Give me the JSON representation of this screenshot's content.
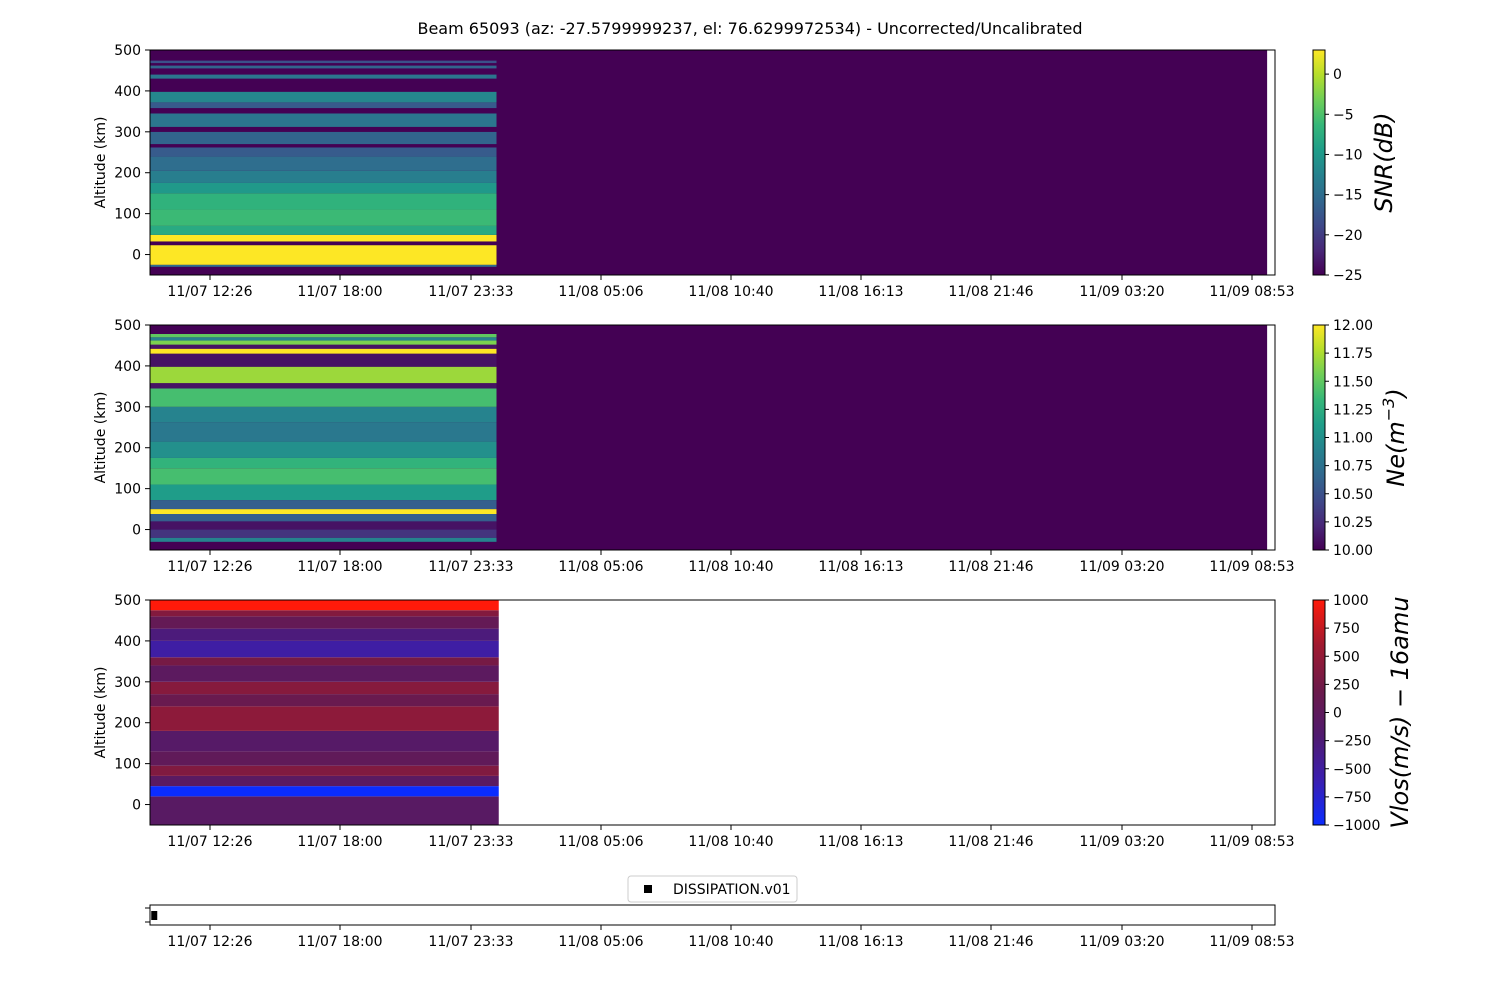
{
  "figure": {
    "title": "Beam 65093 (az: -27.5799999237, el: 76.6299972534) - Uncorrected/Uncalibrated",
    "time_ticks": [
      "11/07 12:26",
      "11/07 18:00",
      "11/07 23:33",
      "11/08 05:06",
      "11/08 10:40",
      "11/08 16:13",
      "11/08 21:46",
      "11/09 03:20",
      "11/09 08:53"
    ]
  },
  "colors": {
    "axes": "#000000",
    "viridis": [
      "#440154",
      "#482878",
      "#3e4989",
      "#31688e",
      "#26828e",
      "#1f9e89",
      "#35b779",
      "#6ece58",
      "#b5de2b",
      "#fde725"
    ],
    "bwr_dark": [
      "#0b2cff",
      "#3b1fb0",
      "#501a6e",
      "#6c1a4a",
      "#a01a30",
      "#ff1a0a"
    ]
  },
  "chart_data": [
    {
      "type": "heatmap",
      "name": "snr",
      "ylabel": "Altitude (km)",
      "ylim": [
        -50,
        500
      ],
      "yticks": [
        0,
        100,
        200,
        300,
        400,
        500
      ],
      "colorbar": {
        "label": "SNR(dB)",
        "colormap": "viridis",
        "range": [
          -25,
          3
        ],
        "ticks": [
          0,
          -5,
          -10,
          -15,
          -20,
          -25
        ],
        "tick_labels": [
          "0",
          "−5",
          "−10",
          "−15",
          "−20",
          "−25"
        ]
      },
      "data_time_extent": [
        0,
        0.308
      ],
      "axis_time_extent": [
        0,
        0.993
      ],
      "background_value": -25,
      "bands": [
        {
          "range": [
            -30,
            -25
          ],
          "value": -15
        },
        {
          "range": [
            -25,
            23
          ],
          "value": 3
        },
        {
          "range": [
            23,
            32
          ],
          "value": -25
        },
        {
          "range": [
            32,
            48
          ],
          "value": 3
        },
        {
          "range": [
            48,
            70
          ],
          "value": -8
        },
        {
          "range": [
            70,
            110
          ],
          "value": -6
        },
        {
          "range": [
            110,
            150
          ],
          "value": -7
        },
        {
          "range": [
            150,
            175
          ],
          "value": -10
        },
        {
          "range": [
            175,
            205
          ],
          "value": -13
        },
        {
          "range": [
            205,
            240
          ],
          "value": -15
        },
        {
          "range": [
            240,
            262
          ],
          "value": -17
        },
        {
          "range": [
            262,
            270
          ],
          "value": -25
        },
        {
          "range": [
            270,
            300
          ],
          "value": -16
        },
        {
          "range": [
            300,
            312
          ],
          "value": -25
        },
        {
          "range": [
            312,
            345
          ],
          "value": -14
        },
        {
          "range": [
            345,
            358
          ],
          "value": -25
        },
        {
          "range": [
            358,
            372
          ],
          "value": -17
        },
        {
          "range": [
            372,
            398
          ],
          "value": -12
        },
        {
          "range": [
            398,
            430
          ],
          "value": -25
        },
        {
          "range": [
            430,
            440
          ],
          "value": -14
        },
        {
          "range": [
            440,
            455
          ],
          "value": -25
        },
        {
          "range": [
            455,
            462
          ],
          "value": -16
        },
        {
          "range": [
            462,
            468
          ],
          "value": -25
        },
        {
          "range": [
            468,
            474
          ],
          "value": -18
        }
      ]
    },
    {
      "type": "heatmap",
      "name": "ne",
      "ylabel": "Altitude (km)",
      "ylim": [
        -50,
        500
      ],
      "yticks": [
        0,
        100,
        200,
        300,
        400,
        500
      ],
      "colorbar": {
        "label": "Ne(m^-3)",
        "colormap": "viridis",
        "range": [
          10.0,
          12.0
        ],
        "ticks": [
          12.0,
          11.75,
          11.5,
          11.25,
          11.0,
          10.75,
          10.5,
          10.25,
          10.0
        ],
        "tick_labels": [
          "12.00",
          "11.75",
          "11.50",
          "11.25",
          "11.00",
          "10.75",
          "10.50",
          "10.25",
          "10.00"
        ]
      },
      "data_time_extent": [
        0,
        0.308
      ],
      "axis_time_extent": [
        0,
        0.993
      ],
      "background_value": 10.0,
      "bands": [
        {
          "range": [
            -30,
            -20
          ],
          "value": 10.9
        },
        {
          "range": [
            -20,
            0
          ],
          "value": 10.3
        },
        {
          "range": [
            0,
            20
          ],
          "value": 10.1
        },
        {
          "range": [
            20,
            38
          ],
          "value": 10.6
        },
        {
          "range": [
            38,
            50
          ],
          "value": 12.0
        },
        {
          "range": [
            50,
            72
          ],
          "value": 10.6
        },
        {
          "range": [
            72,
            110
          ],
          "value": 11.1
        },
        {
          "range": [
            110,
            150
          ],
          "value": 11.4
        },
        {
          "range": [
            150,
            175
          ],
          "value": 11.3
        },
        {
          "range": [
            175,
            215
          ],
          "value": 11.0
        },
        {
          "range": [
            215,
            262
          ],
          "value": 10.8
        },
        {
          "range": [
            262,
            300
          ],
          "value": 10.9
        },
        {
          "range": [
            300,
            345
          ],
          "value": 11.4
        },
        {
          "range": [
            345,
            358
          ],
          "value": 10.1
        },
        {
          "range": [
            358,
            398
          ],
          "value": 11.7
        },
        {
          "range": [
            398,
            430
          ],
          "value": 10.1
        },
        {
          "range": [
            430,
            442
          ],
          "value": 12.0
        },
        {
          "range": [
            442,
            452
          ],
          "value": 10.1
        },
        {
          "range": [
            452,
            462
          ],
          "value": 11.6
        },
        {
          "range": [
            462,
            470
          ],
          "value": 10.9
        },
        {
          "range": [
            470,
            478
          ],
          "value": 11.5
        }
      ]
    },
    {
      "type": "heatmap",
      "name": "vlos",
      "ylabel": "Altitude (km)",
      "ylim": [
        -50,
        500
      ],
      "yticks": [
        0,
        100,
        200,
        300,
        400,
        500
      ],
      "colorbar": {
        "label": "Vlos(m/s) - 16amu",
        "colormap": "bwr",
        "range": [
          -1000,
          1000
        ],
        "ticks": [
          1000,
          750,
          500,
          250,
          0,
          -250,
          -500,
          -750,
          -1000
        ],
        "tick_labels": [
          "1000",
          "750",
          "500",
          "250",
          "0",
          "−250",
          "−500",
          "−750",
          "−1000"
        ]
      },
      "data_time_extent": [
        0,
        0.31
      ],
      "axis_time_extent": [
        0,
        1.0
      ],
      "background_value": null,
      "bands": [
        {
          "range": [
            -50,
            20
          ],
          "value": -80
        },
        {
          "range": [
            20,
            45
          ],
          "value": -1000
        },
        {
          "range": [
            45,
            70
          ],
          "value": -60
        },
        {
          "range": [
            70,
            95
          ],
          "value": 350
        },
        {
          "range": [
            95,
            130
          ],
          "value": 30
        },
        {
          "range": [
            130,
            180
          ],
          "value": -120
        },
        {
          "range": [
            180,
            240
          ],
          "value": 450
        },
        {
          "range": [
            240,
            270
          ],
          "value": 150
        },
        {
          "range": [
            270,
            300
          ],
          "value": 400
        },
        {
          "range": [
            300,
            340
          ],
          "value": -30
        },
        {
          "range": [
            340,
            360
          ],
          "value": 280
        },
        {
          "range": [
            360,
            400
          ],
          "value": -530
        },
        {
          "range": [
            400,
            430
          ],
          "value": -280
        },
        {
          "range": [
            430,
            460
          ],
          "value": 80
        },
        {
          "range": [
            460,
            475
          ],
          "value": 380
        },
        {
          "range": [
            475,
            500
          ],
          "value": 1000
        }
      ]
    },
    {
      "type": "scatter",
      "name": "data-marks",
      "legend": [
        "DISSIPATION.v01"
      ],
      "points": [
        {
          "t": 0.002
        }
      ]
    }
  ]
}
